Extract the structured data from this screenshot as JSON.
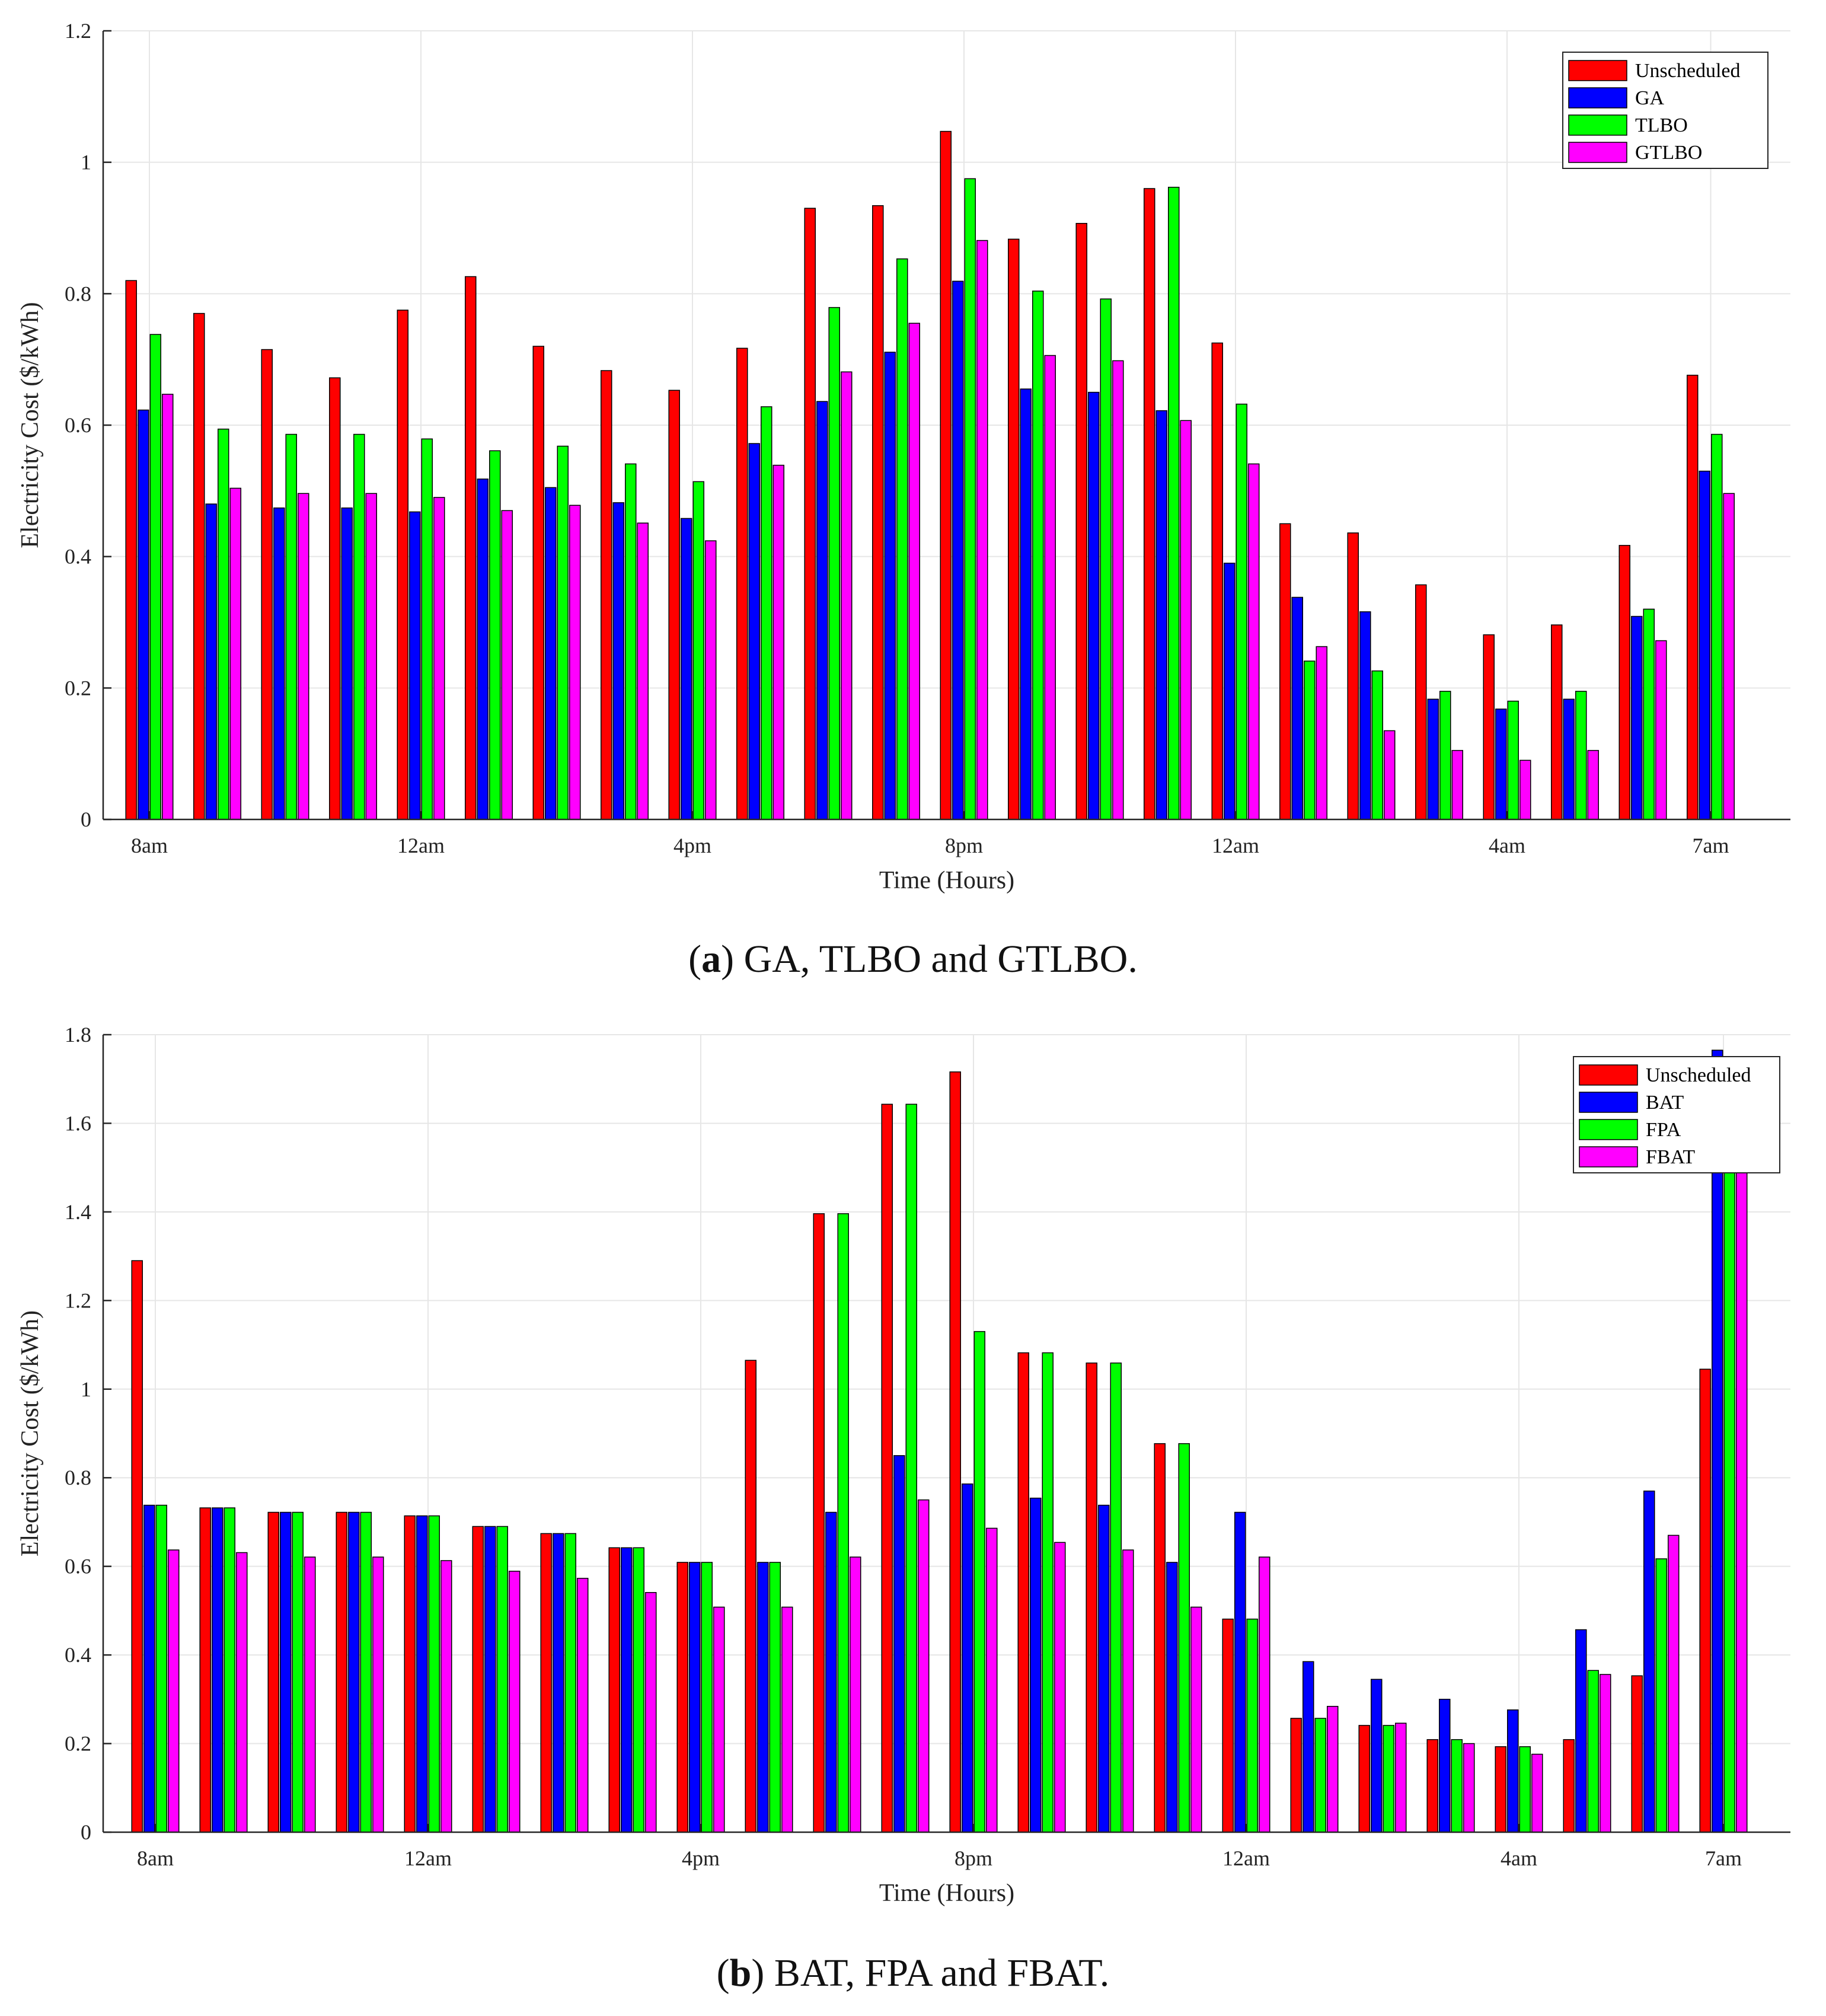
{
  "colors": {
    "unscheduled": "#ff0000",
    "series2": "#0000ff",
    "series3": "#00ff00",
    "series4": "#ff00ff",
    "grid": "#e6e6e6",
    "axis": "#262626"
  },
  "captions": {
    "a_letter": "a",
    "a_text": " GA, TLBO and GTLBO.",
    "b_letter": "b",
    "b_text": " BAT, FPA and FBAT."
  },
  "chart_data": [
    {
      "type": "bar",
      "title": "",
      "xlabel": "Time (Hours)",
      "ylabel": "Electricity Cost ($/kWh)",
      "ylim": [
        0,
        1.2
      ],
      "yticks": [
        0,
        0.2,
        0.4,
        0.6,
        0.8,
        1,
        1.2
      ],
      "ytick_labels": [
        "0",
        "0.2",
        "0.4",
        "0.6",
        "0.8",
        "1",
        "1.2"
      ],
      "xtick_labels": [
        {
          "slot": 0,
          "label": "8am"
        },
        {
          "slot": 4,
          "label": "12am"
        },
        {
          "slot": 8,
          "label": "4pm"
        },
        {
          "slot": 12,
          "label": "8pm"
        },
        {
          "slot": 16,
          "label": "12am"
        },
        {
          "slot": 20,
          "label": "4am"
        },
        {
          "slot": 23,
          "label": "7am"
        }
      ],
      "grid": true,
      "legend_position": "top-right",
      "series": [
        {
          "name": "Unscheduled",
          "values": [
            0.82,
            0.77,
            0.715,
            0.672,
            0.775,
            0.826,
            0.72,
            0.683,
            0.653,
            0.717,
            0.93,
            0.934,
            1.047,
            0.883,
            0.907,
            0.96,
            0.725,
            0.45,
            0.436,
            0.357,
            0.281,
            0.296,
            0.417,
            0.676
          ]
        },
        {
          "name": "GA",
          "values": [
            0.623,
            0.48,
            0.474,
            0.474,
            0.468,
            0.518,
            0.505,
            0.482,
            0.458,
            0.572,
            0.636,
            0.711,
            0.819,
            0.655,
            0.65,
            0.622,
            0.39,
            0.338,
            0.316,
            0.183,
            0.168,
            0.183,
            0.309,
            0.53
          ]
        },
        {
          "name": "TLBO",
          "values": [
            0.738,
            0.594,
            0.586,
            0.586,
            0.579,
            0.561,
            0.568,
            0.541,
            0.514,
            0.628,
            0.779,
            0.853,
            0.975,
            0.804,
            0.792,
            0.962,
            0.632,
            0.241,
            0.226,
            0.195,
            0.18,
            0.195,
            0.32,
            0.586
          ]
        },
        {
          "name": "GTLBO",
          "values": [
            0.647,
            0.504,
            0.496,
            0.496,
            0.49,
            0.47,
            0.478,
            0.451,
            0.424,
            0.539,
            0.681,
            0.755,
            0.881,
            0.706,
            0.698,
            0.607,
            0.541,
            0.263,
            0.135,
            0.105,
            0.09,
            0.105,
            0.272,
            0.496
          ]
        }
      ]
    },
    {
      "type": "bar",
      "title": "",
      "xlabel": "Time (Hours)",
      "ylabel": "Electricity Cost ($/kWh)",
      "ylim": [
        0,
        1.8
      ],
      "yticks": [
        0,
        0.2,
        0.4,
        0.6,
        0.8,
        1,
        1.2,
        1.4,
        1.6,
        1.8
      ],
      "ytick_labels": [
        "0",
        "0.2",
        "0.4",
        "0.6",
        "0.8",
        "1",
        "1.2",
        "1.4",
        "1.6",
        "1.8"
      ],
      "xtick_labels": [
        {
          "slot": 0,
          "label": "8am"
        },
        {
          "slot": 4,
          "label": "12am"
        },
        {
          "slot": 8,
          "label": "4pm"
        },
        {
          "slot": 12,
          "label": "8pm"
        },
        {
          "slot": 16,
          "label": "12am"
        },
        {
          "slot": 20,
          "label": "4am"
        },
        {
          "slot": 23,
          "label": "7am"
        }
      ],
      "grid": true,
      "legend_position": "top-right",
      "series": [
        {
          "name": "Unscheduled",
          "values": [
            1.29,
            0.732,
            0.722,
            0.722,
            0.714,
            0.69,
            0.674,
            0.642,
            0.609,
            1.065,
            1.396,
            1.643,
            1.716,
            1.082,
            1.059,
            0.877,
            0.481,
            0.257,
            0.241,
            0.209,
            0.193,
            0.209,
            0.353,
            1.045
          ]
        },
        {
          "name": "BAT",
          "values": [
            0.738,
            0.732,
            0.722,
            0.722,
            0.714,
            0.69,
            0.674,
            0.642,
            0.609,
            0.609,
            0.722,
            0.85,
            0.786,
            0.754,
            0.738,
            0.609,
            0.722,
            0.385,
            0.345,
            0.3,
            0.276,
            0.457,
            0.77,
            1.765
          ]
        },
        {
          "name": "FPA",
          "values": [
            0.738,
            0.732,
            0.722,
            0.722,
            0.714,
            0.69,
            0.674,
            0.642,
            0.609,
            0.609,
            1.396,
            1.643,
            1.13,
            1.082,
            1.059,
            0.877,
            0.481,
            0.257,
            0.241,
            0.209,
            0.193,
            0.365,
            0.617,
            1.55
          ]
        },
        {
          "name": "FBAT",
          "values": [
            0.637,
            0.631,
            0.621,
            0.621,
            0.613,
            0.589,
            0.573,
            0.541,
            0.508,
            0.508,
            0.621,
            0.75,
            0.686,
            0.654,
            0.637,
            0.508,
            0.621,
            0.284,
            0.246,
            0.2,
            0.176,
            0.356,
            0.67,
            1.5
          ]
        }
      ]
    }
  ]
}
